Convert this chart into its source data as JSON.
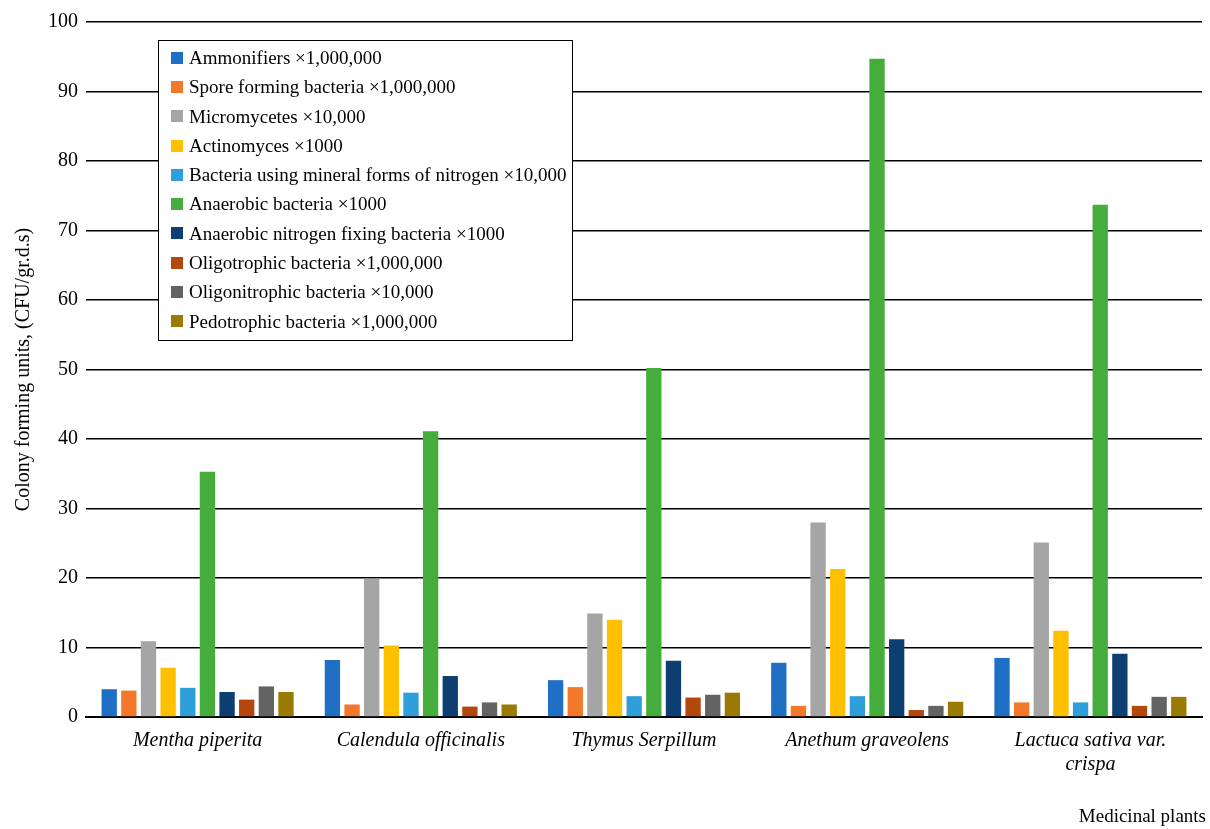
{
  "chart_data": {
    "type": "bar",
    "xlabel": "Medicinal plants",
    "ylabel": "Colony forming units, (CFU/gr.d.s)",
    "categories": [
      "Mentha piperita",
      "Calendula officinalis",
      "Thymus Serpillum",
      "Anethum graveolens",
      "Lactuca sativa var. crispa"
    ],
    "series": [
      {
        "name": "Ammonifiers ×1,000,000",
        "color": "#1f6fc5",
        "values": [
          4.0,
          8.2,
          5.3,
          7.8,
          8.5
        ]
      },
      {
        "name": "Spore forming bacteria ×1,000,000",
        "color": "#f4782a",
        "values": [
          3.8,
          1.8,
          4.3,
          1.6,
          2.1
        ]
      },
      {
        "name": "Micromycetes ×10,000",
        "color": "#a5a5a5",
        "values": [
          10.9,
          19.9,
          14.9,
          28.0,
          25.1
        ]
      },
      {
        "name": "Actinomyces ×1000",
        "color": "#ffc000",
        "values": [
          7.1,
          10.3,
          14.0,
          21.3,
          12.4
        ]
      },
      {
        "name": "Bacteria using mineral forms of nitrogen ×10,000",
        "color": "#2e9fda",
        "values": [
          4.2,
          3.5,
          3.0,
          3.0,
          2.1
        ]
      },
      {
        "name": "Anaerobic bacteria ×1000",
        "color": "#44ad3c",
        "values": [
          35.3,
          41.1,
          50.2,
          94.7,
          73.7
        ]
      },
      {
        "name": "Anaerobic nitrogen fixing bacteria ×1000",
        "color": "#0d3f73",
        "values": [
          3.6,
          5.9,
          8.1,
          11.2,
          9.1
        ]
      },
      {
        "name": "Oligotrophic bacteria ×1,000,000",
        "color": "#b4470c",
        "values": [
          2.5,
          1.5,
          2.8,
          1.0,
          1.6
        ]
      },
      {
        "name": "Oligonitrophic bacteria ×10,000",
        "color": "#636363",
        "values": [
          4.4,
          2.1,
          3.2,
          1.6,
          2.9
        ]
      },
      {
        "name": "Pedotrophic bacteria ×1,000,000",
        "color": "#9a7a00",
        "values": [
          3.6,
          1.8,
          3.5,
          2.2,
          2.9
        ]
      }
    ],
    "ylim": [
      0,
      100
    ],
    "yticks": [
      0,
      10,
      20,
      30,
      40,
      50,
      60,
      70,
      80,
      90,
      100
    ],
    "grid": "y",
    "legend": "top left"
  }
}
